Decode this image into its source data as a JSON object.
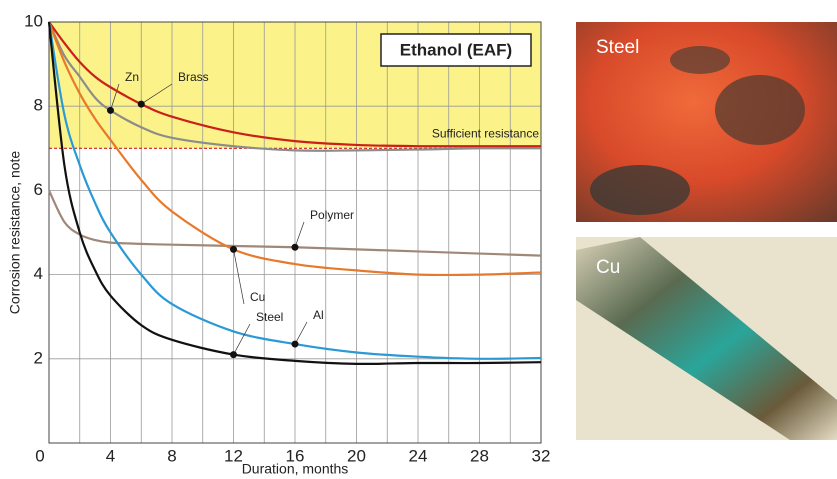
{
  "chart_data": {
    "type": "line",
    "title": "Ethanol (EAF)",
    "x_label": "Duration, months",
    "y_label": "Corrosion resistance, note",
    "x": [
      0,
      1,
      2,
      3,
      4,
      6,
      8,
      12,
      16,
      20,
      24,
      28,
      32
    ],
    "series": [
      {
        "name": "Zn",
        "color": "#8c8c8c",
        "values": [
          10,
          9.2,
          8.7,
          8.2,
          7.9,
          7.5,
          7.25,
          7.05,
          6.95,
          6.95,
          6.97,
          7.0,
          7.0
        ]
      },
      {
        "name": "Brass",
        "color": "#cc1f1a",
        "values": [
          10,
          9.5,
          9.05,
          8.7,
          8.45,
          8.05,
          7.75,
          7.38,
          7.17,
          7.08,
          7.05,
          7.05,
          7.05
        ]
      },
      {
        "name": "Polymer",
        "color": "#a08878",
        "values": [
          6,
          5.25,
          4.95,
          4.82,
          4.76,
          4.73,
          4.71,
          4.68,
          4.65,
          4.6,
          4.55,
          4.5,
          4.45
        ]
      },
      {
        "name": "Cu",
        "color": "#e8792a",
        "values": [
          10,
          9.05,
          8.3,
          7.7,
          7.2,
          6.25,
          5.5,
          4.6,
          4.25,
          4.1,
          4.0,
          4.0,
          4.05
        ]
      },
      {
        "name": "Al",
        "color": "#2a9ad6",
        "values": [
          10,
          7.8,
          6.6,
          5.7,
          5.0,
          4.0,
          3.3,
          2.65,
          2.35,
          2.15,
          2.05,
          2.0,
          2.02
        ]
      },
      {
        "name": "Steel",
        "color": "#111111",
        "values": [
          10,
          6.6,
          5.0,
          4.1,
          3.5,
          2.8,
          2.45,
          2.1,
          1.95,
          1.88,
          1.9,
          1.9,
          1.92
        ]
      }
    ],
    "xlim": [
      0,
      32
    ],
    "xticks": [
      0,
      4,
      8,
      12,
      16,
      20,
      24,
      28,
      32
    ],
    "xminor": [
      2,
      6,
      10,
      14,
      18,
      22,
      26,
      30
    ],
    "ylim": [
      0,
      10
    ],
    "yticks": [
      0,
      2,
      4,
      6,
      8,
      10
    ],
    "grid": true,
    "threshold": 7,
    "threshold_label": "Sufficient resistance",
    "threshold_color": "#cc1f1a",
    "zone_color": "#fbf38a"
  },
  "photos": [
    {
      "label": "Steel"
    },
    {
      "label": "Cu"
    }
  ]
}
